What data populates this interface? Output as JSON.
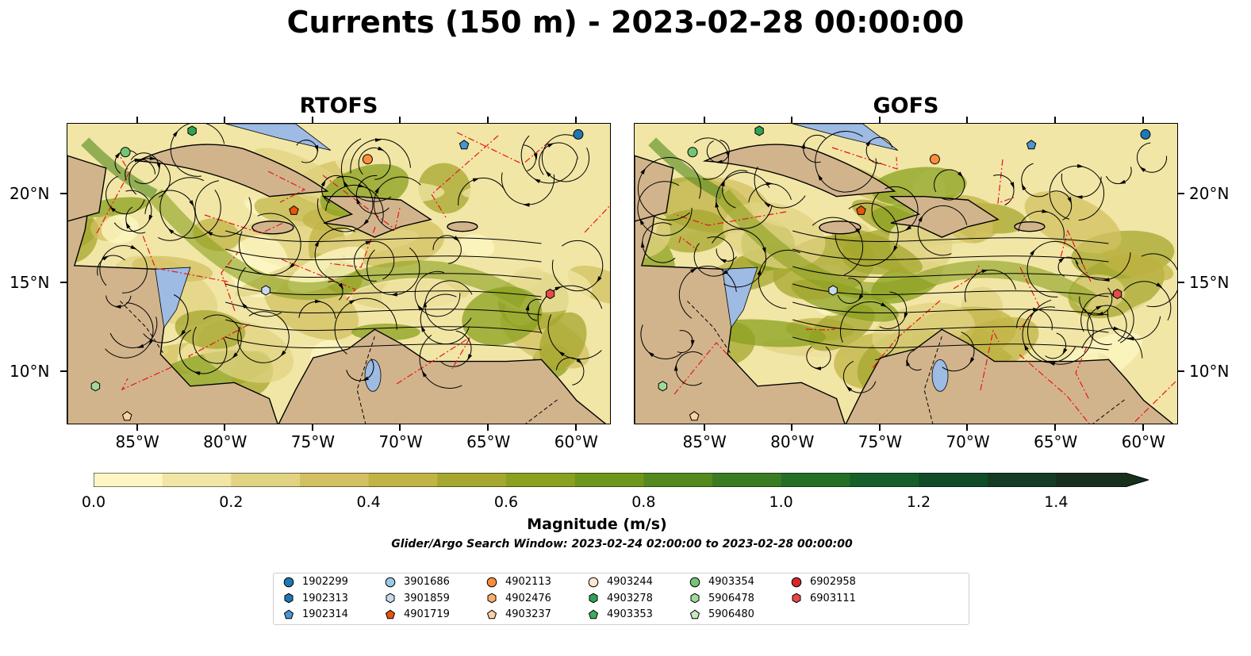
{
  "title": "Currents (150 m) - 2023-02-28 00:00:00",
  "panels": [
    {
      "title": "RTOFS"
    },
    {
      "title": "GOFS"
    }
  ],
  "axes": {
    "lon_labels": [
      "85°W",
      "80°W",
      "75°W",
      "70°W",
      "65°W",
      "60°W"
    ],
    "lat_labels": [
      "20°N",
      "15°N",
      "10°N"
    ]
  },
  "colorbar": {
    "label": "Magnitude (m/s)",
    "ticks": [
      "0.0",
      "0.2",
      "0.4",
      "0.6",
      "0.8",
      "1.0",
      "1.2",
      "1.4"
    ],
    "range": [
      0.0,
      1.5
    ],
    "extend": "max",
    "colors": [
      "#fdf7c4",
      "#f1e6a5",
      "#e2d383",
      "#d2c062",
      "#c0b447",
      "#a6a72f",
      "#8aa01f",
      "#6f961c",
      "#54891d",
      "#3b7c22",
      "#256e26",
      "#165e2a",
      "#104d27",
      "#133c22",
      "#16301d"
    ]
  },
  "search_window": "Glider/Argo Search Window: 2023-02-24 02:00:00 to 2023-02-28 00:00:00",
  "legend": [
    {
      "id": "1902299",
      "marker": "circle",
      "color": "#1f77b4"
    },
    {
      "id": "1902313",
      "marker": "hexagon",
      "color": "#1f77b4"
    },
    {
      "id": "1902314",
      "marker": "pentagon",
      "color": "#4e95cf"
    },
    {
      "id": "3901686",
      "marker": "circle",
      "color": "#9ecae1"
    },
    {
      "id": "3901859",
      "marker": "hexagon",
      "color": "#c6dbef"
    },
    {
      "id": "4901719",
      "marker": "pentagon",
      "color": "#e6550d"
    },
    {
      "id": "4902113",
      "marker": "circle",
      "color": "#fd8d3c"
    },
    {
      "id": "4902476",
      "marker": "hexagon",
      "color": "#fdae6b"
    },
    {
      "id": "4903237",
      "marker": "pentagon",
      "color": "#fdd0a2"
    },
    {
      "id": "4903244",
      "marker": "circle",
      "color": "#fee6ce"
    },
    {
      "id": "4903278",
      "marker": "hexagon",
      "color": "#31a354"
    },
    {
      "id": "4903353",
      "marker": "pentagon",
      "color": "#41ab5d"
    },
    {
      "id": "4903354",
      "marker": "circle",
      "color": "#74c476"
    },
    {
      "id": "5906478",
      "marker": "hexagon",
      "color": "#a1d99b"
    },
    {
      "id": "5906480",
      "marker": "pentagon",
      "color": "#c7e9c0"
    },
    {
      "id": "6902958",
      "marker": "circle",
      "color": "#d62728"
    },
    {
      "id": "6903111",
      "marker": "hexagon",
      "color": "#e34a4a"
    }
  ],
  "floats_on_map": [
    {
      "id": "1902299",
      "lon": -59.9,
      "lat": 23.4
    },
    {
      "id": "1902314",
      "lon": -66.4,
      "lat": 22.8
    },
    {
      "id": "4902113",
      "lon": -71.9,
      "lat": 22.0
    },
    {
      "id": "4903278",
      "lon": -81.9,
      "lat": 23.6
    },
    {
      "id": "4903354",
      "lon": -85.7,
      "lat": 22.4
    },
    {
      "id": "4901719",
      "lon": -76.1,
      "lat": 19.1
    },
    {
      "id": "3901859",
      "lon": -77.7,
      "lat": 14.6
    },
    {
      "id": "6903111",
      "lon": -61.5,
      "lat": 14.4
    },
    {
      "id": "5906478",
      "lon": -87.4,
      "lat": 9.2
    },
    {
      "id": "4903237",
      "lon": -85.6,
      "lat": 7.5
    }
  ]
}
